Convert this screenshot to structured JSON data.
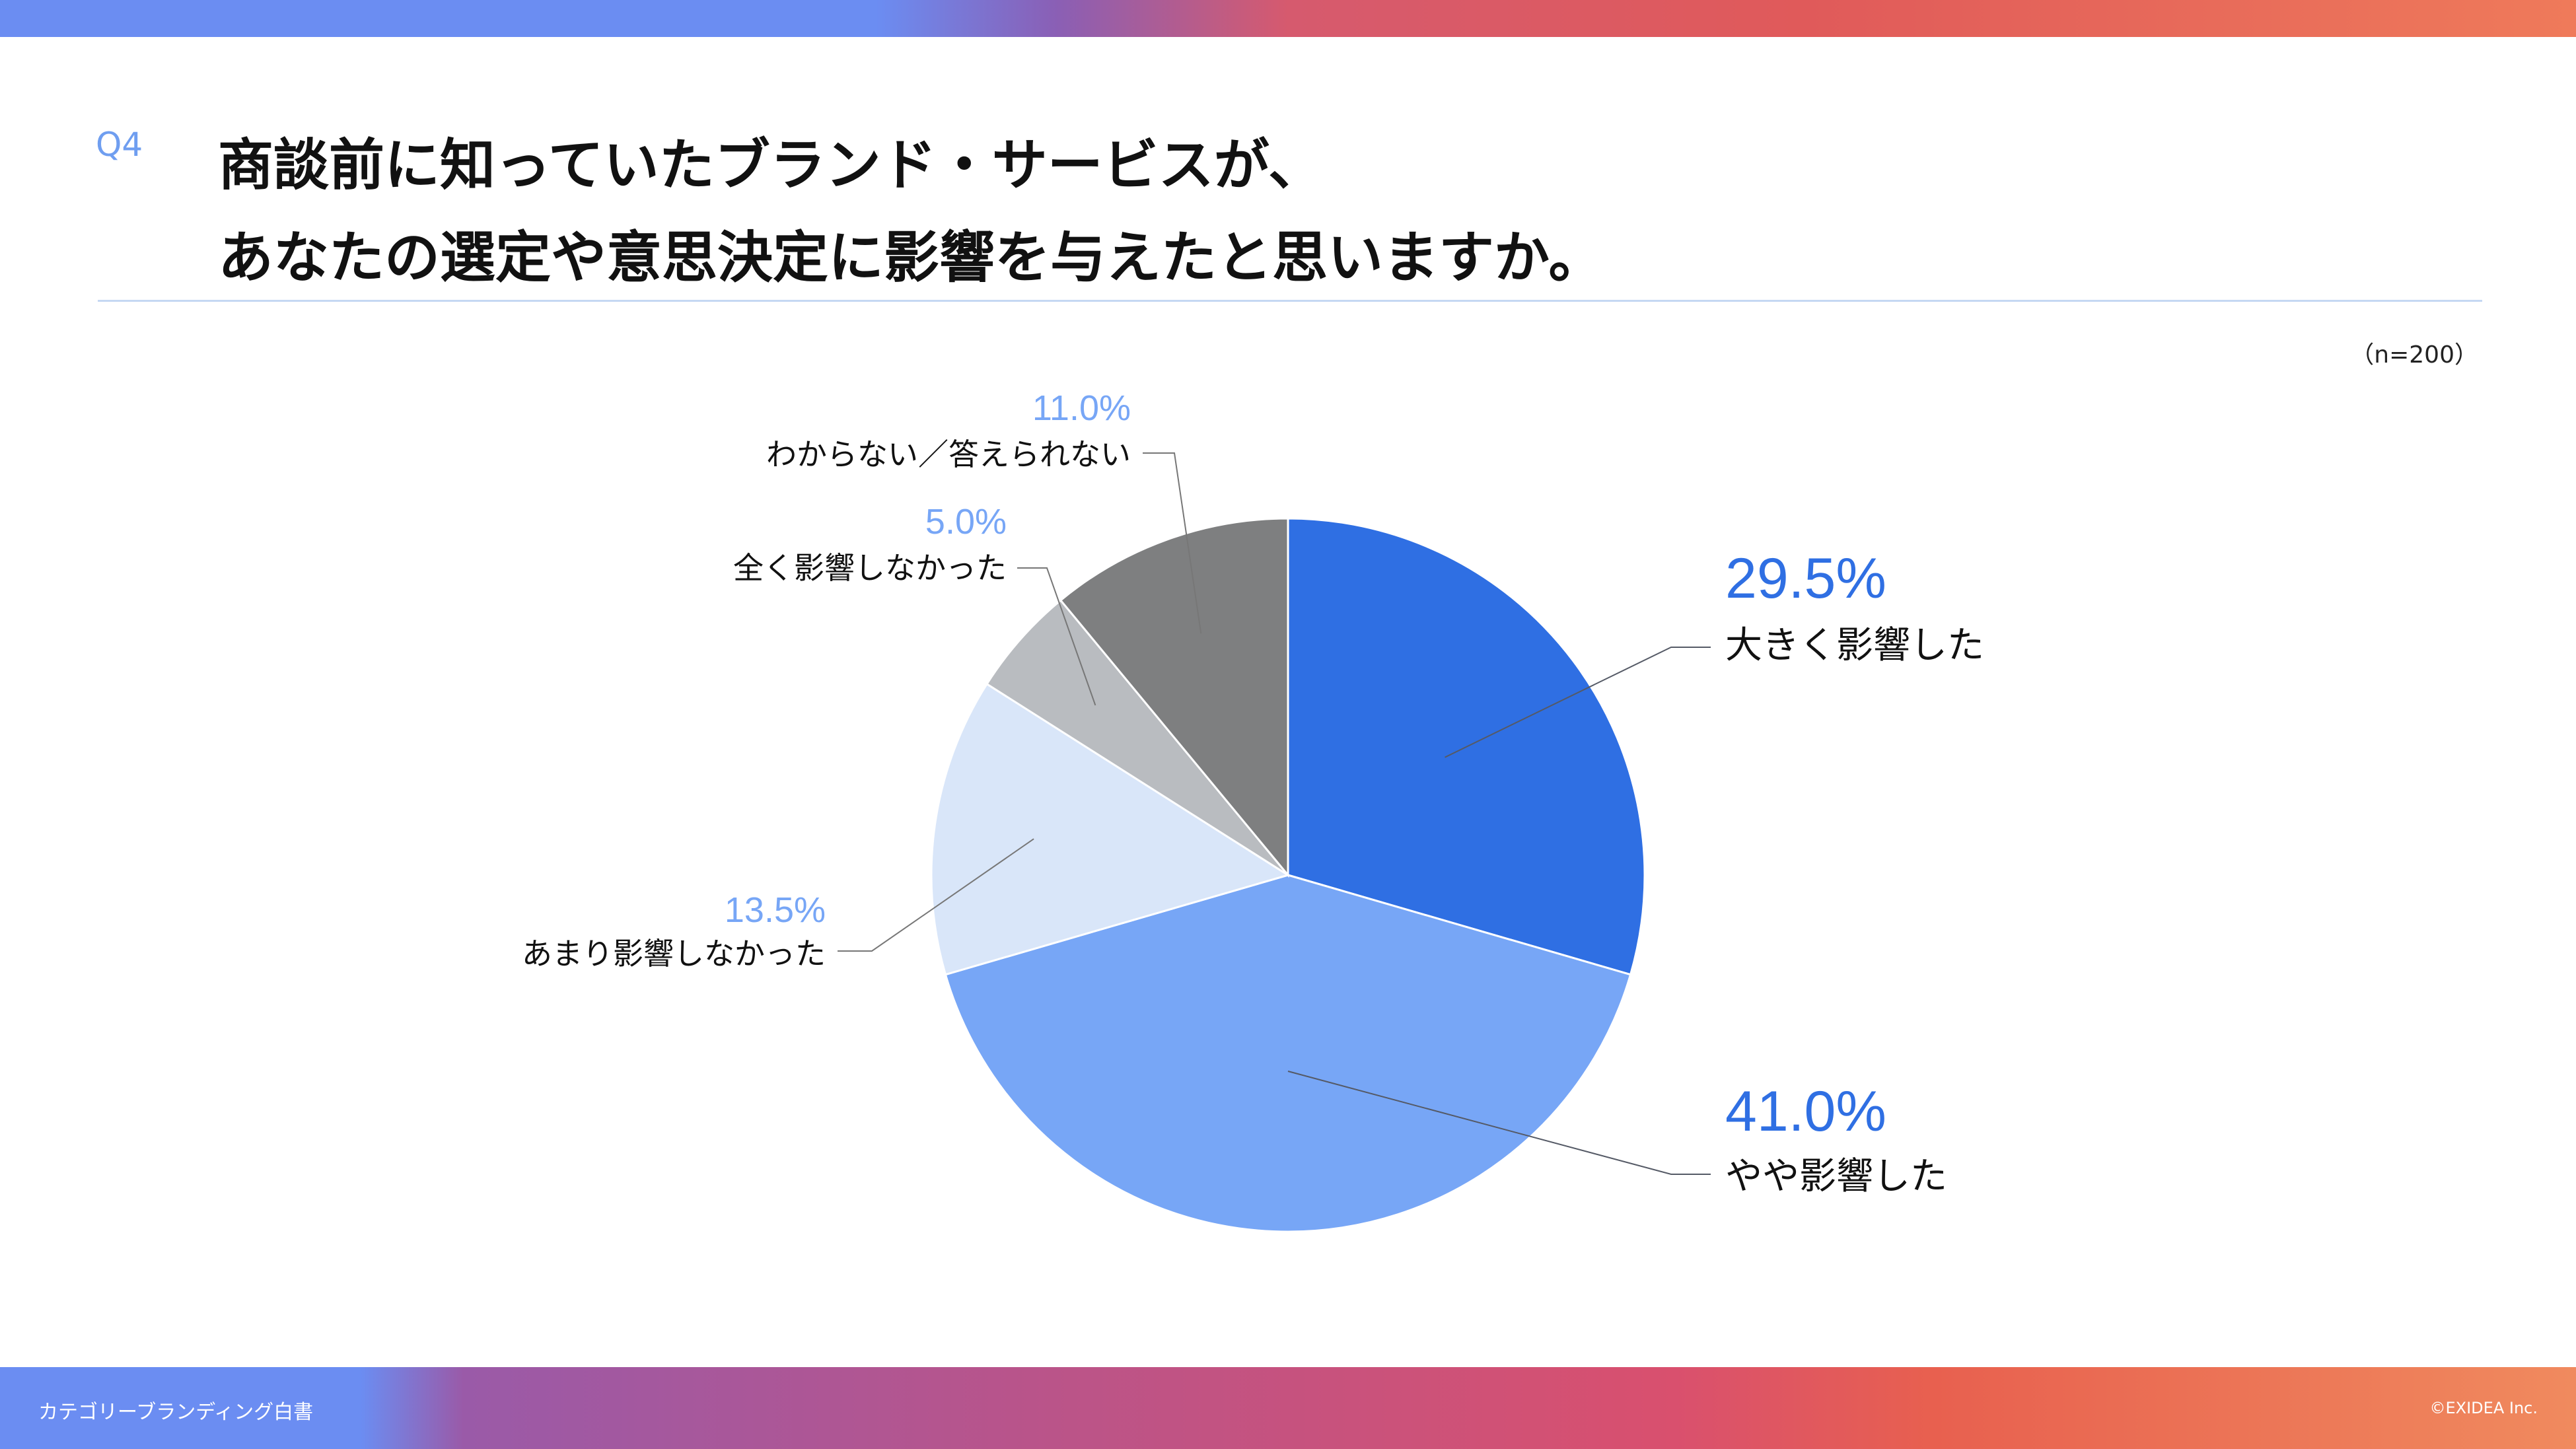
{
  "header": {
    "question_no": "Q4",
    "title_line1": "商談前に知っていたブランド・サービスが、",
    "title_line2": "あなたの選定や意思決定に影響を与えたと思いますか。",
    "sample_size": "（n=200）"
  },
  "chart_data": {
    "type": "pie",
    "start_angle_deg": 0,
    "direction": "clockwise",
    "slices": [
      {
        "label": "大きく影響した",
        "value": 29.5,
        "display": "29.5%",
        "color": "#2f6fe3"
      },
      {
        "label": "やや影響した",
        "value": 41.0,
        "display": "41.0%",
        "color": "#77a6f6"
      },
      {
        "label": "あまり影響しなかった",
        "value": 13.5,
        "display": "13.5%",
        "color": "#d9e6f9"
      },
      {
        "label": "全く影響しなかった",
        "value": 5.0,
        "display": "5.0%",
        "color": "#b9bcc0"
      },
      {
        "label": "わからない／答えられない",
        "value": 11.0,
        "display": "11.0%",
        "color": "#7e7f80"
      }
    ],
    "label_colors": {
      "major": "#2f6fe3",
      "minor": "#77a6f6"
    }
  },
  "footer": {
    "left": "カテゴリーブランディング白書",
    "right": "©EXIDEA Inc."
  }
}
